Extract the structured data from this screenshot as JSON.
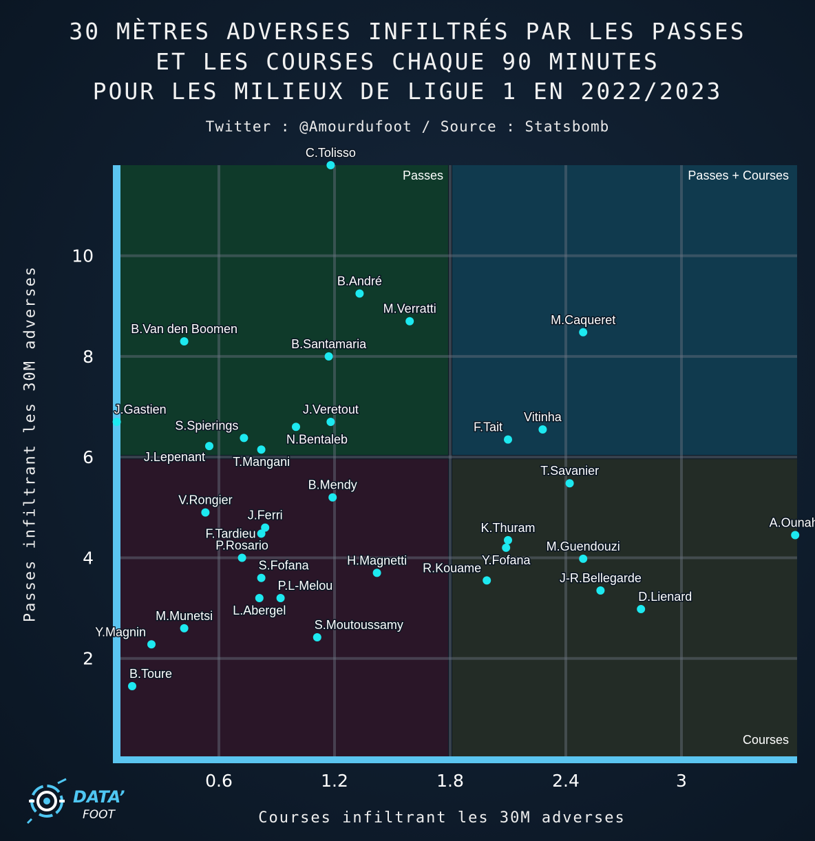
{
  "title_lines": [
    "30 MÈTRES ADVERSES INFILTRÉS PAR LES PASSES",
    "ET LES COURSES CHAQUE 90 MINUTES",
    "POUR LES MILIEUX DE LIGUE 1 EN 2022/2023"
  ],
  "subtitle": "Twitter : @Amourdufoot / Source : Statsbomb",
  "logo": {
    "line1": "DATA’",
    "line2": "FOOT"
  },
  "colors": {
    "quadrant_passes": "#0f3a2a",
    "quadrant_both": "#103a4e",
    "quadrant_none": "#2a1628",
    "quadrant_courses": "#232c26",
    "axis": "#5bc5f0",
    "point": "#1de9f0",
    "grid": "#6a7480"
  },
  "chart_data": {
    "type": "scatter",
    "title": "30 MÈTRES ADVERSES INFILTRÉS PAR LES PASSES ET LES COURSES CHAQUE 90 MINUTES POUR LES MILIEUX DE LIGUE 1 EN 2022/2023",
    "xlabel": "Courses infiltrant les 30M adverses",
    "ylabel": "Passes infiltrant les 30M adverses",
    "xlim": [
      0.05,
      3.6
    ],
    "ylim": [
      0,
      11.8
    ],
    "xticks": [
      0.6,
      1.2,
      1.8,
      2.4,
      3
    ],
    "xtick_labels": [
      "0.6",
      "1.2",
      "1.8",
      "2.4",
      "3"
    ],
    "yticks": [
      2,
      4,
      6,
      8,
      10
    ],
    "ytick_labels": [
      "2",
      "4",
      "6",
      "8",
      "10"
    ],
    "threshold_x": 1.8,
    "threshold_y": 6,
    "quadrant_labels": {
      "top_left": "Passes",
      "top_right": "Passes + Courses",
      "bottom_right": "Courses"
    },
    "points": [
      {
        "name": "C.Tolisso",
        "x": 1.18,
        "y": 11.8,
        "label": "above"
      },
      {
        "name": "B.André",
        "x": 1.33,
        "y": 9.25,
        "label": "above"
      },
      {
        "name": "M.Verratti",
        "x": 1.59,
        "y": 8.7,
        "label": "above"
      },
      {
        "name": "M.Caqueret",
        "x": 2.49,
        "y": 8.48,
        "label": "above"
      },
      {
        "name": "B.Van den Boomen",
        "x": 0.42,
        "y": 8.3,
        "label": "above"
      },
      {
        "name": "B.Santamaria",
        "x": 1.17,
        "y": 8.0,
        "label": "above"
      },
      {
        "name": "J.Gastien",
        "x": 0.07,
        "y": 6.7,
        "label": "aboveright"
      },
      {
        "name": "J.Veretout",
        "x": 1.18,
        "y": 6.7,
        "label": "above"
      },
      {
        "name": "S.Spierings",
        "x": 0.73,
        "y": 6.38,
        "label": "aboveleft"
      },
      {
        "name": "N.Bentaleb",
        "x": 1.0,
        "y": 6.6,
        "label": "belowright"
      },
      {
        "name": "J.Lepenant",
        "x": 0.55,
        "y": 6.22,
        "label": "belowleft"
      },
      {
        "name": "T.Mangani",
        "x": 0.82,
        "y": 6.15,
        "label": "below"
      },
      {
        "name": "Vitinha",
        "x": 2.28,
        "y": 6.55,
        "label": "above"
      },
      {
        "name": "F.Tait",
        "x": 2.1,
        "y": 6.35,
        "label": "aboveleft"
      },
      {
        "name": "T.Savanier",
        "x": 2.42,
        "y": 5.48,
        "label": "above"
      },
      {
        "name": "B.Mendy",
        "x": 1.19,
        "y": 5.2,
        "label": "above"
      },
      {
        "name": "V.Rongier",
        "x": 0.53,
        "y": 4.9,
        "label": "above"
      },
      {
        "name": "J.Ferri",
        "x": 0.84,
        "y": 4.6,
        "label": "above"
      },
      {
        "name": "F.Tardieu",
        "x": 0.82,
        "y": 4.48,
        "label": "left"
      },
      {
        "name": "A.Ounahi",
        "x": 3.59,
        "y": 4.45,
        "label": "above"
      },
      {
        "name": "K.Thuram",
        "x": 2.1,
        "y": 4.35,
        "label": "above"
      },
      {
        "name": "Y.Fofana",
        "x": 2.09,
        "y": 4.2,
        "label": "below"
      },
      {
        "name": "P.Rosario",
        "x": 0.72,
        "y": 4.0,
        "label": "above"
      },
      {
        "name": "M.Guendouzi",
        "x": 2.49,
        "y": 3.98,
        "label": "above"
      },
      {
        "name": "H.Magnetti",
        "x": 1.42,
        "y": 3.7,
        "label": "above"
      },
      {
        "name": "S.Fofana",
        "x": 0.82,
        "y": 3.6,
        "label": "aboveright"
      },
      {
        "name": "R.Kouame",
        "x": 1.99,
        "y": 3.55,
        "label": "aboveleft"
      },
      {
        "name": "J-R.Bellegarde",
        "x": 2.58,
        "y": 3.35,
        "label": "above"
      },
      {
        "name": "P.L-Melou",
        "x": 0.92,
        "y": 3.2,
        "label": "aboveright"
      },
      {
        "name": "L.Abergel",
        "x": 0.81,
        "y": 3.2,
        "label": "below"
      },
      {
        "name": "D.Lienard",
        "x": 2.79,
        "y": 2.98,
        "label": "aboveright"
      },
      {
        "name": "M.Munetsi",
        "x": 0.42,
        "y": 2.6,
        "label": "above"
      },
      {
        "name": "S.Moutoussamy",
        "x": 1.11,
        "y": 2.42,
        "label": "aboveright"
      },
      {
        "name": "Y.Magnin",
        "x": 0.25,
        "y": 2.28,
        "label": "aboveleft"
      },
      {
        "name": "B.Toure",
        "x": 0.15,
        "y": 1.45,
        "label": "aboveright"
      }
    ]
  }
}
